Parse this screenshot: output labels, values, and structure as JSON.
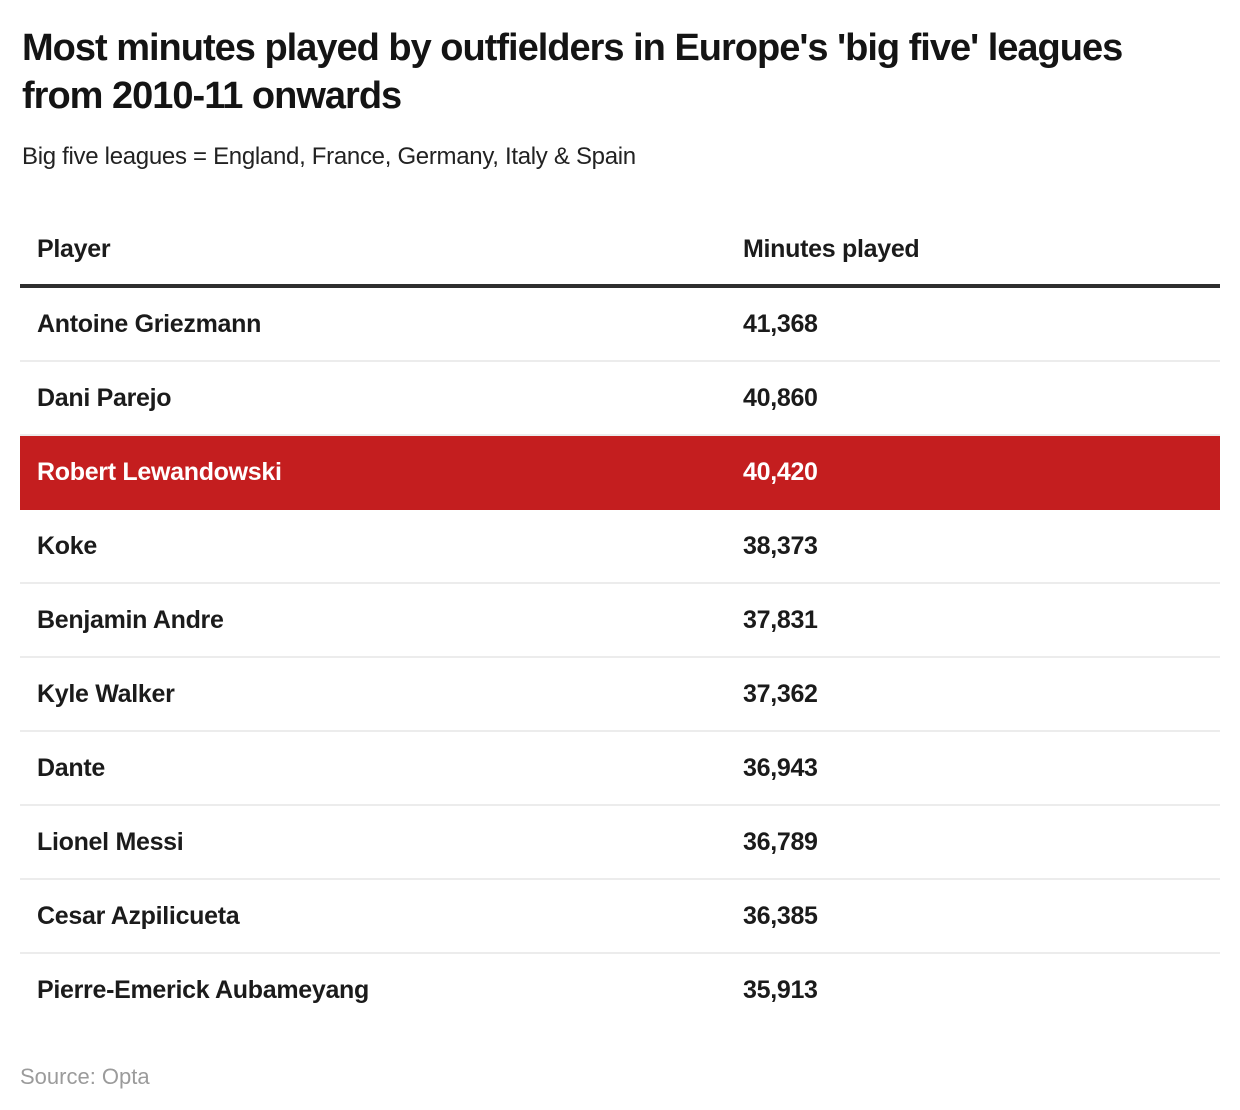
{
  "header": {
    "title": "Most minutes played by outfielders in Europe's 'big five' leagues from 2010-11 onwards",
    "subtitle": "Big five leagues = England, France, Germany, Italy & Spain"
  },
  "table": {
    "columns": [
      "Player",
      "Minutes played"
    ],
    "rows": [
      {
        "player": "Antoine Griezmann",
        "minutes": "41,368",
        "highlight": false
      },
      {
        "player": "Dani Parejo",
        "minutes": "40,860",
        "highlight": false
      },
      {
        "player": "Robert Lewandowski",
        "minutes": "40,420",
        "highlight": true
      },
      {
        "player": "Koke",
        "minutes": "38,373",
        "highlight": false
      },
      {
        "player": "Benjamin Andre",
        "minutes": "37,831",
        "highlight": false
      },
      {
        "player": "Kyle Walker",
        "minutes": "37,362",
        "highlight": false
      },
      {
        "player": "Dante",
        "minutes": "36,943",
        "highlight": false
      },
      {
        "player": "Lionel Messi",
        "minutes": "36,789",
        "highlight": false
      },
      {
        "player": "Cesar Azpilicueta",
        "minutes": "36,385",
        "highlight": false
      },
      {
        "player": "Pierre-Emerick Aubameyang",
        "minutes": "35,913",
        "highlight": false
      }
    ]
  },
  "footer": {
    "source": "Source: Opta"
  },
  "colors": {
    "highlight_red": "#c41e1f",
    "header_rule": "#2e2e2e",
    "row_divider": "#ececec",
    "text": "#1b1b1b",
    "muted": "#9b9b9b"
  },
  "chart_data": {
    "type": "table",
    "title": "Most minutes played by outfielders in Europe's 'big five' leagues from 2010-11 onwards",
    "subtitle": "Big five leagues = England, France, Germany, Italy & Spain",
    "columns": [
      "Player",
      "Minutes played"
    ],
    "categories": [
      "Antoine Griezmann",
      "Dani Parejo",
      "Robert Lewandowski",
      "Koke",
      "Benjamin Andre",
      "Kyle Walker",
      "Dante",
      "Lionel Messi",
      "Cesar Azpilicueta",
      "Pierre-Emerick Aubameyang"
    ],
    "values": [
      41368,
      40860,
      40420,
      38373,
      37831,
      37362,
      36943,
      36789,
      36385,
      35913
    ],
    "highlighted_category": "Robert Lewandowski",
    "source": "Source: Opta"
  }
}
